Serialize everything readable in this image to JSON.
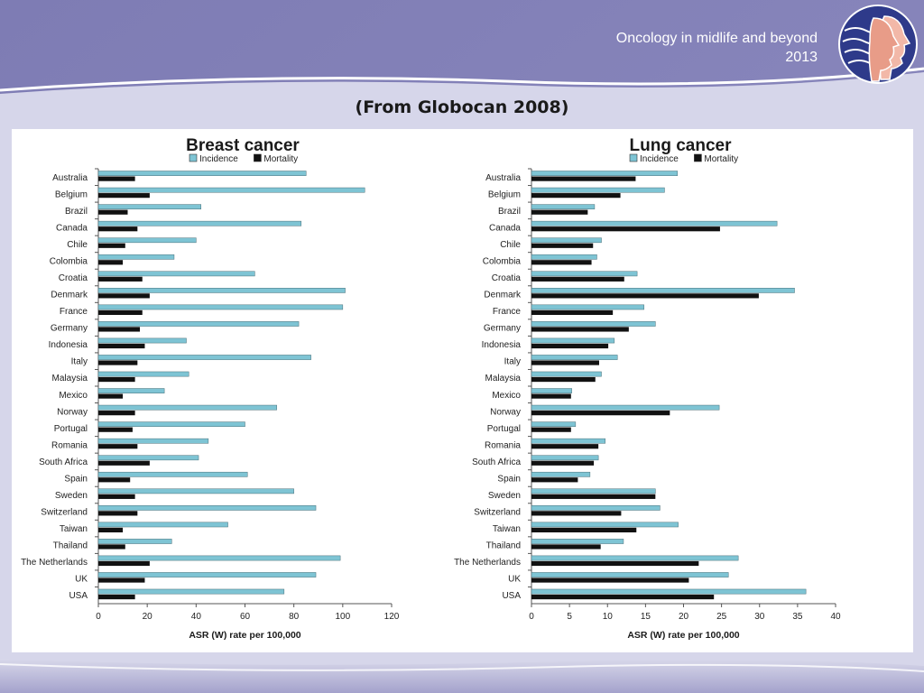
{
  "header": {
    "line1": "Oncology in midlife and beyond",
    "line2": "2013"
  },
  "subtitle": "(From Globocan 2008)",
  "icons": {
    "logo": "profile-faces-logo-icon"
  },
  "colors": {
    "background": "#8a88bc",
    "incidence": "#7ec4d4",
    "mortality": "#111111"
  },
  "chart_data": [
    {
      "type": "bar",
      "orientation": "horizontal",
      "title": "Breast cancer",
      "legend": [
        "Incidence",
        "Mortality"
      ],
      "legend_position": "top",
      "xlabel": "ASR (W) rate per 100,000",
      "ylabel": "",
      "xlim": [
        0,
        120
      ],
      "xticks": [
        0,
        20,
        40,
        60,
        80,
        100,
        120
      ],
      "categories": [
        "Australia",
        "Belgium",
        "Brazil",
        "Canada",
        "Chile",
        "Colombia",
        "Croatia",
        "Denmark",
        "France",
        "Germany",
        "Indonesia",
        "Italy",
        "Malaysia",
        "Mexico",
        "Norway",
        "Portugal",
        "Romania",
        "South Africa",
        "Spain",
        "Sweden",
        "Switzerland",
        "Taiwan",
        "Thailand",
        "The Netherlands",
        "UK",
        "USA"
      ],
      "series": [
        {
          "name": "Incidence",
          "values": [
            85,
            109,
            42,
            83,
            40,
            31,
            64,
            101,
            100,
            82,
            36,
            87,
            37,
            27,
            73,
            60,
            45,
            41,
            61,
            80,
            89,
            53,
            30,
            99,
            89,
            76
          ]
        },
        {
          "name": "Mortality",
          "values": [
            15,
            21,
            12,
            16,
            11,
            10,
            18,
            21,
            18,
            17,
            19,
            16,
            15,
            10,
            15,
            14,
            16,
            21,
            13,
            15,
            16,
            10,
            11,
            21,
            19,
            15
          ]
        }
      ]
    },
    {
      "type": "bar",
      "orientation": "horizontal",
      "title": "Lung cancer",
      "legend": [
        "Incidence",
        "Mortality"
      ],
      "legend_position": "top",
      "xlabel": "ASR (W) rate per 100,000",
      "ylabel": "",
      "xlim": [
        0,
        40
      ],
      "xticks": [
        0,
        5,
        10,
        15,
        20,
        25,
        30,
        35,
        40
      ],
      "categories": [
        "Australia",
        "Belgium",
        "Brazil",
        "Canada",
        "Chile",
        "Colombia",
        "Croatia",
        "Denmark",
        "France",
        "Germany",
        "Indonesia",
        "Italy",
        "Malaysia",
        "Mexico",
        "Norway",
        "Portugal",
        "Romania",
        "South Africa",
        "Spain",
        "Sweden",
        "Switzerland",
        "Taiwan",
        "Thailand",
        "The Netherlands",
        "UK",
        "USA"
      ],
      "series": [
        {
          "name": "Incidence",
          "values": [
            19.2,
            17.5,
            8.3,
            32.3,
            9.2,
            8.6,
            13.9,
            34.6,
            14.8,
            16.3,
            10.9,
            11.3,
            9.2,
            5.3,
            24.7,
            5.8,
            9.7,
            8.8,
            7.7,
            16.3,
            16.9,
            19.3,
            12.1,
            27.2,
            25.9,
            36.1
          ]
        },
        {
          "name": "Mortality",
          "values": [
            13.7,
            11.7,
            7.4,
            24.8,
            8.1,
            7.9,
            12.2,
            29.9,
            10.7,
            12.8,
            10.1,
            8.9,
            8.4,
            5.2,
            18.2,
            5.2,
            8.8,
            8.2,
            6.1,
            16.3,
            11.8,
            13.8,
            9.1,
            22.0,
            20.7,
            24.0
          ]
        }
      ]
    }
  ]
}
